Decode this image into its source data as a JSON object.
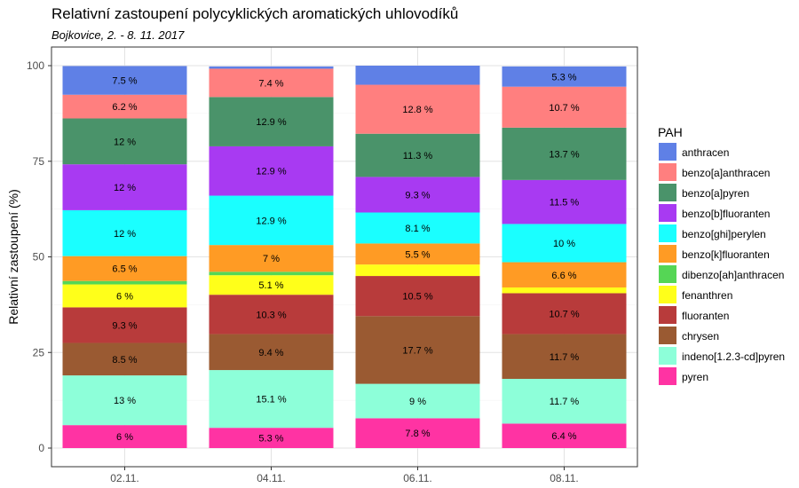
{
  "chart_data": {
    "type": "bar",
    "stacked": true,
    "title": "Relativní zastoupení polycyklických aromatických uhlovodíků",
    "subtitle": "Bojkovice, 2. - 8. 11. 2017",
    "xlabel": "",
    "ylabel": "Relativní zastoupení (%)",
    "ylim": [
      0,
      105
    ],
    "yticks": [
      0,
      25,
      50,
      75,
      100
    ],
    "grid": true,
    "legend_title": "PAH",
    "legend_position": "right",
    "categories": [
      "02.11.",
      "04.11.",
      "06.11.",
      "08.11."
    ],
    "series": [
      {
        "name": "pyren",
        "color": "#FF33A3",
        "values": [
          6,
          5.3,
          7.8,
          6.4
        ],
        "labels": [
          "6 %",
          "5.3 %",
          "7.8 %",
          "6.4 %"
        ]
      },
      {
        "name": "indeno[1.2.3-cd]pyren",
        "color": "#8DFFD9",
        "values": [
          13,
          15.1,
          9,
          11.7
        ],
        "labels": [
          "13 %",
          "15.1 %",
          "9 %",
          "11.7 %"
        ]
      },
      {
        "name": "chrysen",
        "color": "#9A5A32",
        "values": [
          8.5,
          9.4,
          17.7,
          11.7
        ],
        "labels": [
          "8.5 %",
          "9.4 %",
          "17.7 %",
          "11.7 %"
        ]
      },
      {
        "name": "fluoranten",
        "color": "#B83B3B",
        "values": [
          9.3,
          10.3,
          10.5,
          10.7
        ],
        "labels": [
          "9.3 %",
          "10.3 %",
          "10.5 %",
          "10.7 %"
        ]
      },
      {
        "name": "fenanthren",
        "color": "#FFFF1A",
        "values": [
          6,
          5.1,
          3,
          1.5
        ],
        "labels": [
          "6 %",
          "5.1 %",
          "",
          ""
        ]
      },
      {
        "name": "dibenzo[ah]anthracen",
        "color": "#55D655",
        "values": [
          0.9,
          0.9,
          0,
          0
        ],
        "labels": [
          "",
          "",
          "",
          ""
        ]
      },
      {
        "name": "benzo[k]fluoranten",
        "color": "#FF9B24",
        "values": [
          6.5,
          7,
          5.5,
          6.6
        ],
        "labels": [
          "6.5 %",
          "7 %",
          "5.5 %",
          "6.6 %"
        ]
      },
      {
        "name": "benzo[ghi]perylen",
        "color": "#1AFFFF",
        "values": [
          12,
          12.9,
          8.1,
          10
        ],
        "labels": [
          "12 %",
          "12.9 %",
          "8.1 %",
          "10 %"
        ]
      },
      {
        "name": "benzo[b]fluoranten",
        "color": "#A83AF2",
        "values": [
          12,
          12.9,
          9.3,
          11.5
        ],
        "labels": [
          "12 %",
          "12.9 %",
          "9.3 %",
          "11.5 %"
        ]
      },
      {
        "name": "benzo[a]pyren",
        "color": "#4A936A",
        "values": [
          12,
          12.9,
          11.3,
          13.7
        ],
        "labels": [
          "12 %",
          "12.9 %",
          "11.3 %",
          "13.7 %"
        ]
      },
      {
        "name": "benzo[a]anthracen",
        "color": "#FF7F7F",
        "values": [
          6.2,
          7.4,
          12.8,
          10.7
        ],
        "labels": [
          "6.2 %",
          "7.4 %",
          "12.8 %",
          "10.7 %"
        ]
      },
      {
        "name": "anthracen",
        "color": "#5F80E6",
        "values": [
          7.5,
          0.6,
          5,
          5.3
        ],
        "labels": [
          "7.5 %",
          "",
          "",
          "5.3 %"
        ]
      }
    ],
    "legend_order": [
      "anthracen",
      "benzo[a]anthracen",
      "benzo[a]pyren",
      "benzo[b]fluoranten",
      "benzo[ghi]perylen",
      "benzo[k]fluoranten",
      "dibenzo[ah]anthracen",
      "fenanthren",
      "fluoranten",
      "chrysen",
      "indeno[1.2.3-cd]pyren",
      "pyren"
    ]
  }
}
